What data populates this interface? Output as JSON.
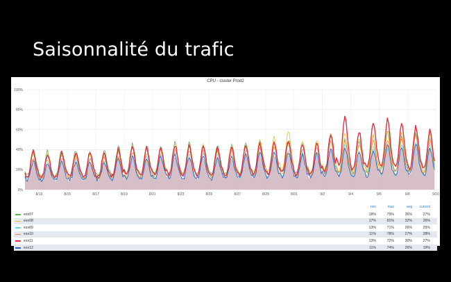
{
  "slide": {
    "title": "Saisonnalité du trafic"
  },
  "chart_data": {
    "type": "line",
    "title": "CPU - cluster Prod2",
    "y_ticks": [
      "0%",
      "20%",
      "40%",
      "60%",
      "80%",
      "100%"
    ],
    "ylim": [
      0,
      100
    ],
    "x_ticks": [
      "8/13",
      "8/15",
      "8/17",
      "8/19",
      "8/21",
      "8/23",
      "8/25",
      "8/27",
      "8/29",
      "8/31",
      "9/2",
      "9/4",
      "9/6",
      "9/8",
      "9/10"
    ],
    "xlim": [
      "2023-08-12",
      "2023-09-10"
    ],
    "grid": true,
    "legend_placement": "bottom",
    "legend_columns": [
      "min",
      "max",
      "avg",
      "current"
    ],
    "series": [
      {
        "name": "esx07",
        "color": "#5ab24c",
        "min": "18%",
        "max": "79%",
        "avg": "36%",
        "current": "27%",
        "peak_by_day": [
          41,
          38,
          39,
          40,
          38,
          39,
          43,
          46,
          44,
          45,
          48,
          47,
          46,
          45,
          44,
          46,
          49,
          48,
          50,
          47,
          48,
          52,
          50,
          50,
          54,
          60,
          52,
          55,
          50,
          54
        ]
      },
      {
        "name": "esx08",
        "color": "#f2bc2f",
        "min": "17%",
        "max": "81%",
        "avg": "32%",
        "current": "26%",
        "peak_by_day": [
          36,
          34,
          35,
          36,
          35,
          34,
          38,
          44,
          42,
          43,
          46,
          45,
          44,
          42,
          43,
          44,
          50,
          52,
          60,
          48,
          50,
          56,
          57,
          52,
          55,
          57,
          56,
          62,
          56,
          60
        ]
      },
      {
        "name": "esx09",
        "color": "#6ed0e0",
        "min": "13%",
        "max": "71%",
        "avg": "26%",
        "current": "25%",
        "peak_by_day": [
          30,
          29,
          30,
          30,
          29,
          30,
          32,
          34,
          33,
          34,
          36,
          35,
          35,
          34,
          34,
          36,
          38,
          38,
          40,
          37,
          38,
          42,
          44,
          40,
          42,
          46,
          44,
          48,
          43,
          46
        ]
      },
      {
        "name": "esx10",
        "color": "#ef843c",
        "min": "11%",
        "max": "78%",
        "avg": "27%",
        "current": "28%",
        "peak_by_day": [
          32,
          31,
          32,
          33,
          32,
          32,
          34,
          38,
          37,
          38,
          40,
          39,
          39,
          38,
          38,
          40,
          42,
          43,
          46,
          41,
          42,
          48,
          50,
          46,
          48,
          50,
          50,
          54,
          50,
          52
        ]
      },
      {
        "name": "esx11",
        "color": "#e02f44",
        "min": "13%",
        "max": "72%",
        "avg": "30%",
        "current": "27%",
        "peak_by_day": [
          38,
          36,
          37,
          38,
          37,
          37,
          40,
          43,
          42,
          42,
          44,
          44,
          43,
          42,
          43,
          44,
          46,
          47,
          50,
          45,
          46,
          56,
          72,
          58,
          68,
          70,
          66,
          64,
          60,
          66
        ]
      },
      {
        "name": "esx12",
        "color": "#1f60c4",
        "min": "11%",
        "max": "74%",
        "avg": "26%",
        "current": "19%",
        "peak_by_day": [
          28,
          27,
          28,
          28,
          27,
          28,
          30,
          32,
          31,
          32,
          34,
          33,
          33,
          32,
          32,
          34,
          36,
          36,
          38,
          35,
          36,
          40,
          42,
          38,
          40,
          44,
          42,
          46,
          41,
          44
        ]
      }
    ]
  }
}
